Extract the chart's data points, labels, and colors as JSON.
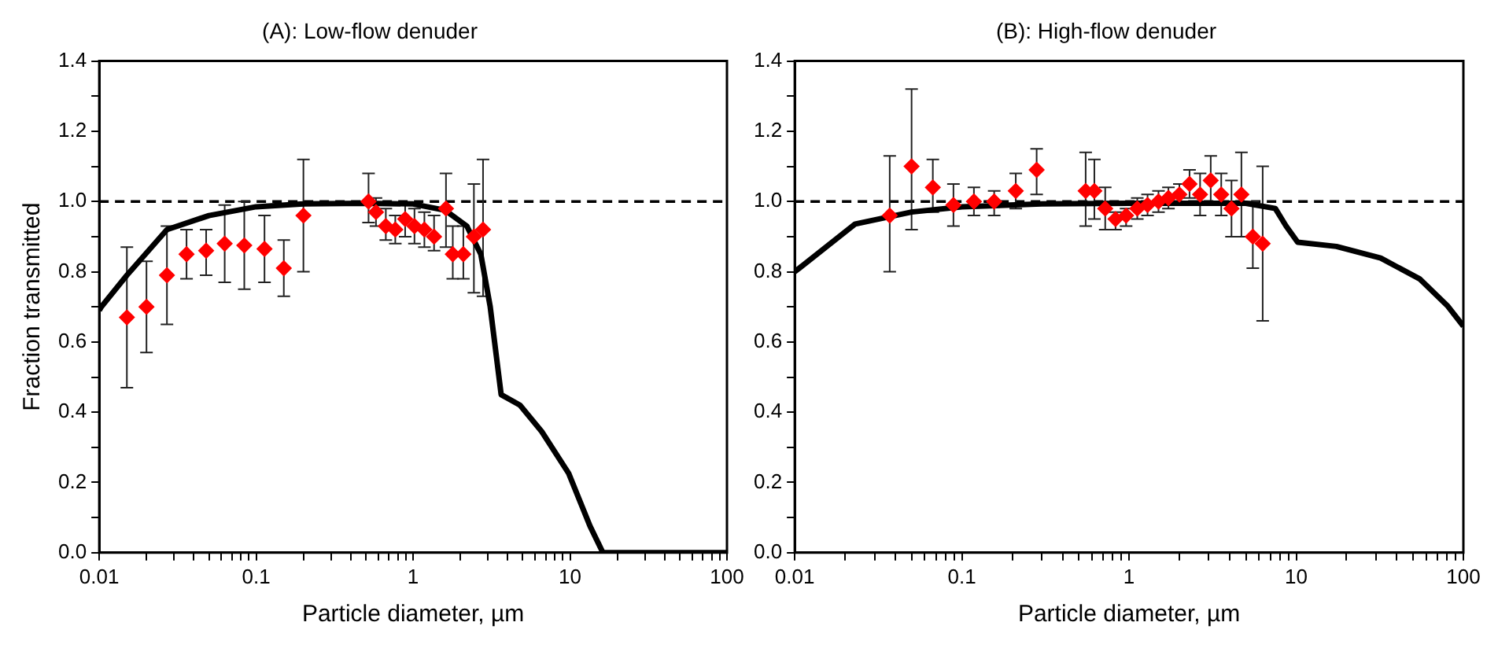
{
  "chart_data": [
    {
      "type": "scatter",
      "title": "(A): Low-flow denuder",
      "xlabel": "Particle diameter, µm",
      "ylabel": "Fraction transmitted",
      "log": "x",
      "grid": false,
      "legend": false,
      "xlim": [
        0.01,
        100
      ],
      "xticks": [
        0.01,
        {
          "value": 0.02,
          "label": null
        },
        {
          "value": 0.03,
          "label": null
        },
        {
          "value": 0.04,
          "label": null
        },
        {
          "value": 0.05,
          "label": null
        },
        {
          "value": 0.06,
          "label": null
        },
        {
          "value": 0.07,
          "label": null
        },
        {
          "value": 0.08,
          "label": null
        },
        {
          "value": 0.09,
          "label": null
        },
        0.1,
        {
          "value": 0.2,
          "label": null
        },
        {
          "value": 0.3,
          "label": null
        },
        {
          "value": 0.4,
          "label": null
        },
        {
          "value": 0.5,
          "label": null
        },
        {
          "value": 0.6,
          "label": null
        },
        {
          "value": 0.7,
          "label": null
        },
        {
          "value": 0.8,
          "label": null
        },
        {
          "value": 0.9,
          "label": null
        },
        1,
        {
          "value": 2,
          "label": null
        },
        {
          "value": 3,
          "label": null
        },
        {
          "value": 4,
          "label": null
        },
        {
          "value": 5,
          "label": null
        },
        {
          "value": 6,
          "label": null
        },
        {
          "value": 7,
          "label": null
        },
        {
          "value": 8,
          "label": null
        },
        {
          "value": 9,
          "label": null
        },
        10,
        {
          "value": 20,
          "label": null
        },
        {
          "value": 30,
          "label": null
        },
        {
          "value": 40,
          "label": null
        },
        {
          "value": 50,
          "label": null
        },
        {
          "value": 60,
          "label": null
        },
        {
          "value": 70,
          "label": null
        },
        {
          "value": 80,
          "label": null
        },
        {
          "value": 90,
          "label": null
        },
        100
      ],
      "ylim": [
        0,
        1.4
      ],
      "yticks": [
        {
          "value": 0,
          "label": "0.0"
        },
        {
          "value": 0.1,
          "label": null
        },
        {
          "value": 0.2,
          "label": "0.2"
        },
        {
          "value": 0.3,
          "label": null
        },
        {
          "value": 0.4,
          "label": "0.4"
        },
        {
          "value": 0.5,
          "label": null
        },
        {
          "value": 0.6,
          "label": "0.6"
        },
        {
          "value": 0.7,
          "label": null
        },
        {
          "value": 0.8,
          "label": "0.8"
        },
        {
          "value": 0.9,
          "label": null
        },
        {
          "value": 1,
          "label": "1.0"
        },
        {
          "value": 1.1,
          "label": null
        },
        {
          "value": 1.2,
          "label": "1.2"
        },
        {
          "value": 1.3,
          "label": null
        },
        {
          "value": 1.4,
          "label": "1.4"
        }
      ],
      "ref_lines": [
        {
          "axis": "y",
          "value": 1,
          "color": "#000000",
          "line_style": "dashed"
        }
      ],
      "series": [
        {
          "type": "line",
          "color": "#000000",
          "marker": "none",
          "line_style": "solid",
          "x": [
            0.01,
            0.0103,
            0.015,
            0.027,
            0.05,
            0.1,
            0.2,
            0.5,
            1,
            1.6,
            2.2,
            2.7,
            3.1,
            3.64,
            4.8,
            6.6,
            9.8,
            13.4,
            16.2,
            30,
            100
          ],
          "values": [
            0.69,
            0.7,
            0.79,
            0.92,
            0.96,
            0.985,
            0.993,
            0.995,
            0.993,
            0.975,
            0.93,
            0.85,
            0.7,
            0.45,
            0.42,
            0.345,
            0.226,
            0.076,
            0,
            0,
            0
          ]
        },
        {
          "type": "scatter",
          "color": "#ff0000",
          "marker": "diamond",
          "x": [
            0.015,
            0.02,
            0.027,
            0.036,
            0.048,
            0.063,
            0.084,
            0.113,
            0.15,
            0.2,
            0.52,
            0.58,
            0.67,
            0.77,
            0.89,
            1.02,
            1.18,
            1.36,
            1.62,
            1.79,
            2.09,
            2.44,
            2.79
          ],
          "values": [
            0.67,
            0.7,
            0.79,
            0.85,
            0.86,
            0.88,
            0.875,
            0.865,
            0.81,
            0.96,
            1.0,
            0.97,
            0.93,
            0.92,
            0.95,
            0.93,
            0.92,
            0.9,
            0.98,
            0.85,
            0.85,
            0.9,
            0.92
          ],
          "errors": [
            [
              0.47,
              0.87
            ],
            [
              0.57,
              0.83
            ],
            [
              0.65,
              0.93
            ],
            [
              0.78,
              0.92
            ],
            [
              0.79,
              0.92
            ],
            [
              0.77,
              0.99
            ],
            [
              0.75,
              1.0
            ],
            [
              0.77,
              0.96
            ],
            [
              0.73,
              0.89
            ],
            [
              0.8,
              1.12
            ],
            [
              0.94,
              1.08
            ],
            [
              0.93,
              1.01
            ],
            [
              0.89,
              0.98
            ],
            [
              0.88,
              0.96
            ],
            [
              0.9,
              0.99
            ],
            [
              0.88,
              0.98
            ],
            [
              0.87,
              0.97
            ],
            [
              0.86,
              0.96
            ],
            [
              0.87,
              1.08
            ],
            [
              0.78,
              0.93
            ],
            [
              0.78,
              0.93
            ],
            [
              0.74,
              1.05
            ],
            [
              0.73,
              1.12
            ]
          ]
        }
      ]
    },
    {
      "type": "scatter",
      "title": "(B): High-flow denuder",
      "xlabel": "Particle diameter, µm",
      "log": "x",
      "grid": false,
      "legend": false,
      "xlim": [
        0.01,
        100
      ],
      "xticks": [
        0.01,
        {
          "value": 0.02,
          "label": null
        },
        {
          "value": 0.03,
          "label": null
        },
        {
          "value": 0.04,
          "label": null
        },
        {
          "value": 0.05,
          "label": null
        },
        {
          "value": 0.06,
          "label": null
        },
        {
          "value": 0.07,
          "label": null
        },
        {
          "value": 0.08,
          "label": null
        },
        {
          "value": 0.09,
          "label": null
        },
        0.1,
        {
          "value": 0.2,
          "label": null
        },
        {
          "value": 0.3,
          "label": null
        },
        {
          "value": 0.4,
          "label": null
        },
        {
          "value": 0.5,
          "label": null
        },
        {
          "value": 0.6,
          "label": null
        },
        {
          "value": 0.7,
          "label": null
        },
        {
          "value": 0.8,
          "label": null
        },
        {
          "value": 0.9,
          "label": null
        },
        1,
        {
          "value": 2,
          "label": null
        },
        {
          "value": 3,
          "label": null
        },
        {
          "value": 4,
          "label": null
        },
        {
          "value": 5,
          "label": null
        },
        {
          "value": 6,
          "label": null
        },
        {
          "value": 7,
          "label": null
        },
        {
          "value": 8,
          "label": null
        },
        {
          "value": 9,
          "label": null
        },
        10,
        {
          "value": 20,
          "label": null
        },
        {
          "value": 30,
          "label": null
        },
        {
          "value": 40,
          "label": null
        },
        {
          "value": 50,
          "label": null
        },
        {
          "value": 60,
          "label": null
        },
        {
          "value": 70,
          "label": null
        },
        {
          "value": 80,
          "label": null
        },
        {
          "value": 90,
          "label": null
        },
        100
      ],
      "ylim": [
        0,
        1.4
      ],
      "yticks": [
        {
          "value": 0,
          "label": "0.0"
        },
        {
          "value": 0.1,
          "label": null
        },
        {
          "value": 0.2,
          "label": "0.2"
        },
        {
          "value": 0.3,
          "label": null
        },
        {
          "value": 0.4,
          "label": "0.4"
        },
        {
          "value": 0.5,
          "label": null
        },
        {
          "value": 0.6,
          "label": "0.6"
        },
        {
          "value": 0.7,
          "label": null
        },
        {
          "value": 0.8,
          "label": "0.8"
        },
        {
          "value": 0.9,
          "label": null
        },
        {
          "value": 1,
          "label": "1.0"
        },
        {
          "value": 1.1,
          "label": null
        },
        {
          "value": 1.2,
          "label": "1.2"
        },
        {
          "value": 1.3,
          "label": null
        },
        {
          "value": 1.4,
          "label": "1.4"
        }
      ],
      "ref_lines": [
        {
          "axis": "y",
          "value": 1,
          "color": "#000000",
          "line_style": "dashed"
        }
      ],
      "series": [
        {
          "type": "line",
          "color": "#000000",
          "marker": "none",
          "line_style": "solid",
          "x": [
            0.01,
            0.023,
            0.05,
            0.1,
            0.3,
            1,
            3.5,
            5,
            7.5,
            8.7,
            10.2,
            17.4,
            32,
            55,
            80,
            100
          ],
          "values": [
            0.8,
            0.936,
            0.97,
            0.985,
            0.993,
            0.995,
            0.995,
            0.995,
            0.98,
            0.93,
            0.884,
            0.872,
            0.839,
            0.779,
            0.704,
            0.645
          ]
        },
        {
          "type": "scatter",
          "color": "#ff0000",
          "marker": "diamond",
          "x": [
            0.037,
            0.05,
            0.067,
            0.089,
            0.118,
            0.156,
            0.21,
            0.28,
            0.55,
            0.62,
            0.72,
            0.83,
            0.96,
            1.12,
            1.29,
            1.5,
            1.72,
            2.0,
            2.3,
            2.66,
            3.08,
            3.56,
            4.1,
            4.7,
            5.5,
            6.3
          ],
          "values": [
            0.96,
            1.1,
            1.04,
            0.99,
            1.0,
            1.0,
            1.03,
            1.09,
            1.03,
            1.03,
            0.98,
            0.95,
            0.96,
            0.98,
            0.99,
            1.0,
            1.01,
            1.02,
            1.05,
            1.02,
            1.06,
            1.02,
            0.98,
            1.02,
            0.9,
            0.88
          ],
          "errors": [
            [
              0.8,
              1.13
            ],
            [
              0.92,
              1.32
            ],
            [
              0.97,
              1.12
            ],
            [
              0.93,
              1.05
            ],
            [
              0.96,
              1.04
            ],
            [
              0.96,
              1.03
            ],
            [
              0.98,
              1.08
            ],
            [
              1.02,
              1.15
            ],
            [
              0.93,
              1.14
            ],
            [
              0.95,
              1.12
            ],
            [
              0.92,
              1.04
            ],
            [
              0.92,
              0.97
            ],
            [
              0.93,
              0.98
            ],
            [
              0.95,
              1.01
            ],
            [
              0.96,
              1.02
            ],
            [
              0.97,
              1.03
            ],
            [
              0.98,
              1.04
            ],
            [
              0.99,
              1.05
            ],
            [
              1.01,
              1.09
            ],
            [
              0.96,
              1.08
            ],
            [
              0.99,
              1.13
            ],
            [
              0.96,
              1.08
            ],
            [
              0.9,
              1.06
            ],
            [
              0.9,
              1.14
            ],
            [
              0.81,
              1.0
            ],
            [
              0.66,
              1.1
            ]
          ]
        }
      ]
    }
  ]
}
